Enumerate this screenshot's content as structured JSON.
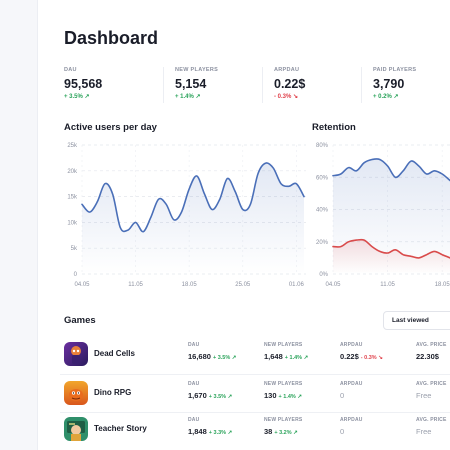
{
  "page": {
    "title": "Dashboard"
  },
  "stats": [
    {
      "label": "DAU",
      "value": "95,568",
      "change": "+ 3.5% ↗",
      "dir": "pos"
    },
    {
      "label": "NEW PLAYERS",
      "value": "5,154",
      "change": "+ 1.4% ↗",
      "dir": "pos"
    },
    {
      "label": "ARPDAU",
      "value": "0.22$",
      "change": "- 0.3% ↘",
      "dir": "neg"
    },
    {
      "label": "PAID PLAYERS",
      "value": "3,790",
      "change": "+ 0.2% ↗",
      "dir": "pos"
    }
  ],
  "active_users": {
    "title": "Active users per day"
  },
  "retention": {
    "title": "Retention"
  },
  "games": {
    "title": "Games",
    "sort_label": "Last viewed",
    "columns": [
      "DAU",
      "NEW PLAYERS",
      "ARPDAU",
      "AVG. PRICE"
    ],
    "rows": [
      {
        "name": "Dead Cells",
        "icon": "dead-cells-icon",
        "dau": "16,680",
        "dau_change": "+ 3.5% ↗",
        "new_players": "1,648",
        "new_players_change": "+ 1.4% ↗",
        "arpdau": "0.22$",
        "arpdau_change": "- 0.3% ↘",
        "arpdau_dir": "neg",
        "avg_price": "22.30$"
      },
      {
        "name": "Dino RPG",
        "icon": "dino-rpg-icon",
        "dau": "1,670",
        "dau_change": "+ 3.5% ↗",
        "new_players": "130",
        "new_players_change": "+ 1.4% ↗",
        "arpdau": "0",
        "arpdau_change": "",
        "arpdau_dir": "",
        "avg_price": "Free"
      },
      {
        "name": "Teacher Story",
        "icon": "teacher-story-icon",
        "dau": "1,848",
        "dau_change": "+ 3.3% ↗",
        "new_players": "38",
        "new_players_change": "+ 3.2% ↗",
        "arpdau": "0",
        "arpdau_change": "",
        "arpdau_dir": "",
        "avg_price": "Free"
      }
    ]
  },
  "colors": {
    "line_blue": "#4a6fb8",
    "line_red": "#d94b4b",
    "positive": "#2aa35a",
    "negative": "#e0414b"
  },
  "chart_data": [
    {
      "type": "line",
      "title": "Active users per day",
      "xlabel": "",
      "ylabel": "",
      "x": [
        "04.05",
        "05.05",
        "06.05",
        "07.05",
        "08.05",
        "09.05",
        "10.05",
        "11.05",
        "12.05",
        "13.05",
        "14.05",
        "15.05",
        "16.05",
        "17.05",
        "18.05",
        "19.05",
        "20.05",
        "21.05",
        "22.05",
        "23.05",
        "24.05",
        "25.05",
        "26.05",
        "27.05",
        "28.05",
        "29.05",
        "30.05",
        "31.05",
        "01.06",
        "02.06"
      ],
      "x_tick_labels": [
        "04.05",
        "11.05",
        "18.05",
        "25.05",
        "01.06"
      ],
      "series": [
        {
          "values": [
            13500,
            12000,
            14000,
            17500,
            15500,
            9000,
            8500,
            10000,
            8200,
            11000,
            14500,
            13500,
            10500,
            12000,
            16500,
            19000,
            15500,
            12500,
            14500,
            18500,
            16000,
            12500,
            13500,
            19500,
            21500,
            20500,
            17500,
            17000,
            17500,
            15000
          ]
        }
      ],
      "y_ticks": [
        "0",
        "5k",
        "10k",
        "15k",
        "20k",
        "25k"
      ],
      "ylim": [
        0,
        25000
      ],
      "grid": true
    },
    {
      "type": "line",
      "title": "Retention",
      "xlabel": "",
      "ylabel": "",
      "x": [
        "04.05",
        "05.05",
        "06.05",
        "07.05",
        "08.05",
        "09.05",
        "10.05",
        "11.05",
        "12.05",
        "13.05",
        "14.05",
        "15.05",
        "16.05",
        "17.05",
        "18.05",
        "19.05"
      ],
      "x_tick_labels": [
        "04.05",
        "11.05",
        "18.05"
      ],
      "series": [
        {
          "color": "#4a6fb8",
          "values": [
            61,
            62,
            66,
            64,
            69,
            71,
            71,
            67,
            60,
            64,
            70,
            67,
            62,
            64,
            62,
            58
          ]
        },
        {
          "color": "#d94b4b",
          "values": [
            17,
            17,
            20,
            21,
            21,
            17,
            14,
            13,
            15,
            12,
            11,
            10,
            12,
            14,
            12,
            10
          ]
        }
      ],
      "y_ticks": [
        "0%",
        "20%",
        "40%",
        "60%",
        "80%"
      ],
      "ylim": [
        0,
        80
      ],
      "grid": true
    }
  ]
}
